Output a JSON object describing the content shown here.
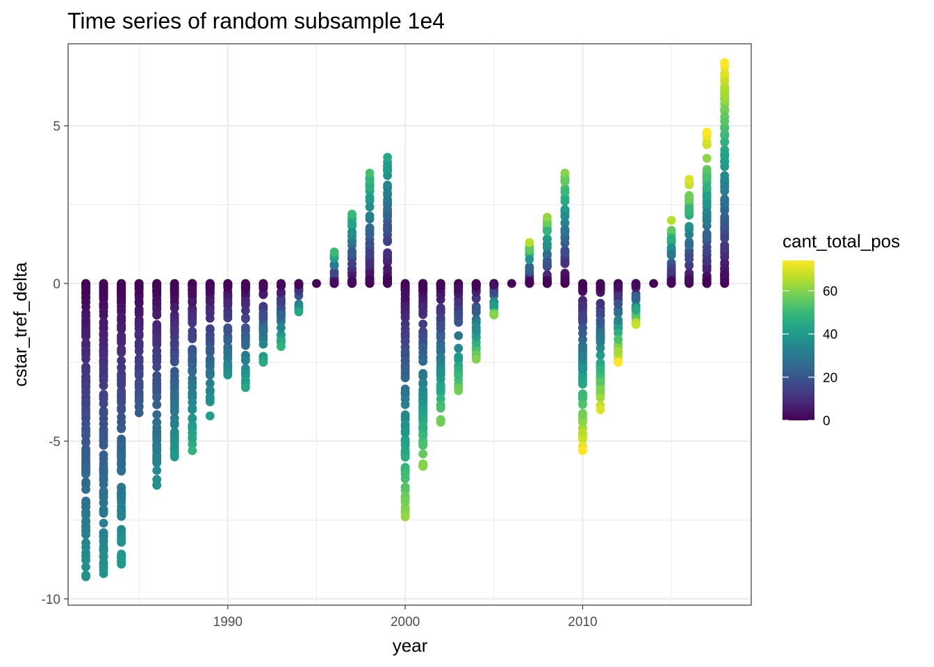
{
  "chart_data": {
    "type": "scatter",
    "title": "Time series of random subsample 1e4",
    "xlabel": "year",
    "ylabel": "cstar_tref_delta",
    "xlim": [
      1981,
      2019.5
    ],
    "ylim": [
      -10.2,
      7.6
    ],
    "x_ticks": [
      1990,
      2000,
      2010
    ],
    "x_tick_labels": [
      "1990",
      "2000",
      "2010"
    ],
    "y_ticks": [
      -10,
      -5,
      0,
      5
    ],
    "y_tick_labels": [
      "-10",
      "-5",
      "0",
      "5"
    ],
    "grid": true,
    "legend": {
      "title": "cant_total_pos",
      "position": "right",
      "min": 0,
      "max": 74,
      "ticks": [
        0,
        20,
        40,
        60
      ],
      "tick_labels": [
        "0",
        "20",
        "40",
        "60"
      ],
      "palette": [
        "#440154",
        "#482878",
        "#3e4989",
        "#31688e",
        "#26828e",
        "#1f9e89",
        "#35b779",
        "#6ece58",
        "#b5de2b",
        "#fde725"
      ]
    },
    "colormap": "viridis",
    "point_color_rule": "cant_total_pos magnitude increases with |cstar_tref_delta| within each year",
    "years": [
      {
        "year": 1982,
        "min": -9.3,
        "max": 0,
        "cmax": 38
      },
      {
        "year": 1983,
        "min": -9.2,
        "max": 0,
        "cmax": 38
      },
      {
        "year": 1984,
        "min": -8.9,
        "max": 0,
        "cmax": 40
      },
      {
        "year": 1985,
        "min": -4.1,
        "max": 0,
        "cmax": 22
      },
      {
        "year": 1986,
        "min": -6.4,
        "max": 0,
        "cmax": 38
      },
      {
        "year": 1987,
        "min": -5.5,
        "max": 0,
        "cmax": 40
      },
      {
        "year": 1988,
        "min": -5.3,
        "max": 0,
        "cmax": 48
      },
      {
        "year": 1989,
        "min": -4.2,
        "max": 0,
        "cmax": 42
      },
      {
        "year": 1990,
        "min": -2.9,
        "max": 0,
        "cmax": 38
      },
      {
        "year": 1991,
        "min": -3.3,
        "max": 0,
        "cmax": 44
      },
      {
        "year": 1992,
        "min": -2.5,
        "max": 0,
        "cmax": 44
      },
      {
        "year": 1993,
        "min": -2.0,
        "max": 0,
        "cmax": 48
      },
      {
        "year": 1994,
        "min": -0.9,
        "max": 0,
        "cmax": 44
      },
      {
        "year": 1995,
        "min": 0,
        "max": 0,
        "cmax": 4
      },
      {
        "year": 1996,
        "min": 0,
        "max": 1.0,
        "cmax": 50
      },
      {
        "year": 1997,
        "min": 0,
        "max": 2.2,
        "cmax": 50
      },
      {
        "year": 1998,
        "min": 0,
        "max": 3.5,
        "cmax": 52
      },
      {
        "year": 1999,
        "min": 0,
        "max": 4.0,
        "cmax": 44
      },
      {
        "year": 2000,
        "min": -7.4,
        "max": 0,
        "cmax": 62
      },
      {
        "year": 2001,
        "min": -5.8,
        "max": 0,
        "cmax": 60
      },
      {
        "year": 2002,
        "min": -4.4,
        "max": 0,
        "cmax": 58
      },
      {
        "year": 2003,
        "min": -3.4,
        "max": 0,
        "cmax": 58
      },
      {
        "year": 2004,
        "min": -2.4,
        "max": 0,
        "cmax": 60
      },
      {
        "year": 2005,
        "min": -1.0,
        "max": 0,
        "cmax": 60
      },
      {
        "year": 2006,
        "min": 0,
        "max": 0,
        "cmax": 4
      },
      {
        "year": 2007,
        "min": 0,
        "max": 1.3,
        "cmax": 66
      },
      {
        "year": 2008,
        "min": 0,
        "max": 2.1,
        "cmax": 62
      },
      {
        "year": 2009,
        "min": 0,
        "max": 3.5,
        "cmax": 60
      },
      {
        "year": 2010,
        "min": -5.3,
        "max": 0,
        "cmax": 74
      },
      {
        "year": 2011,
        "min": -4.0,
        "max": 0,
        "cmax": 70
      },
      {
        "year": 2012,
        "min": -2.5,
        "max": 0,
        "cmax": 74
      },
      {
        "year": 2013,
        "min": -1.3,
        "max": 0,
        "cmax": 68
      },
      {
        "year": 2014,
        "min": 0,
        "max": 0,
        "cmax": 4
      },
      {
        "year": 2015,
        "min": 0,
        "max": 2.0,
        "cmax": 66
      },
      {
        "year": 2016,
        "min": 0,
        "max": 3.3,
        "cmax": 70
      },
      {
        "year": 2017,
        "min": 0,
        "max": 4.8,
        "cmax": 74
      },
      {
        "year": 2018,
        "min": 0,
        "max": 7.0,
        "cmax": 74
      }
    ]
  }
}
